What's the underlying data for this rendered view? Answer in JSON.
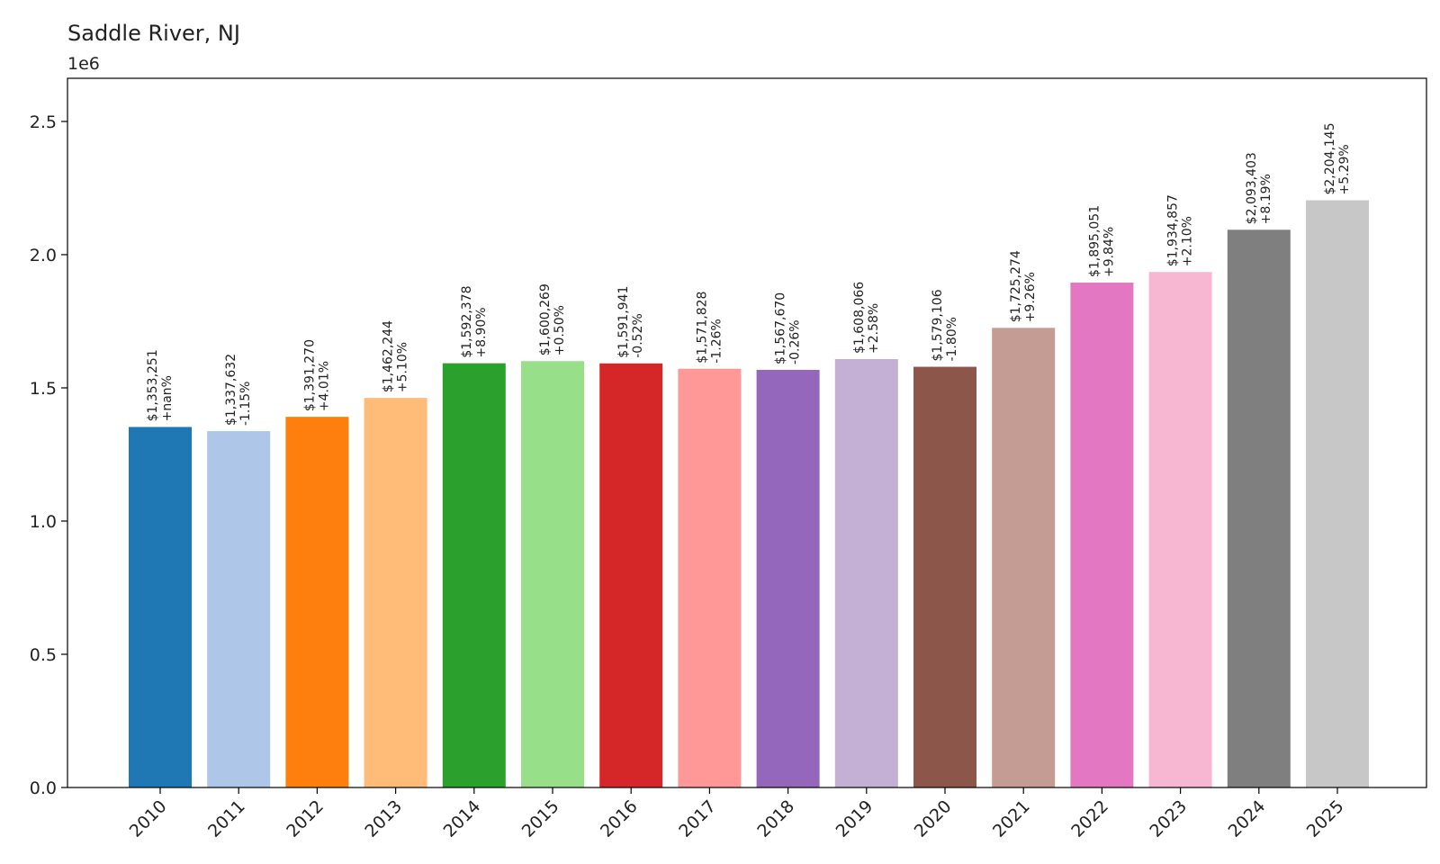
{
  "chart_data": {
    "type": "bar",
    "title": "Saddle River, NJ",
    "y_offset_label": "1e6",
    "xlabel": "",
    "ylabel": "",
    "ylim": [
      0,
      2500000
    ],
    "ytick_values": [
      0,
      500000,
      1000000,
      1500000,
      2000000,
      2500000
    ],
    "ytick_labels": [
      "0.0",
      "0.5",
      "1.0",
      "1.5",
      "2.0",
      "2.5"
    ],
    "grid": false,
    "legend": "none",
    "categories": [
      "2010",
      "2011",
      "2012",
      "2013",
      "2014",
      "2015",
      "2016",
      "2017",
      "2018",
      "2019",
      "2020",
      "2021",
      "2022",
      "2023",
      "2024",
      "2025"
    ],
    "values": [
      1353251,
      1337632,
      1391270,
      1462244,
      1592378,
      1600269,
      1591941,
      1571828,
      1567670,
      1608066,
      1579106,
      1725274,
      1895051,
      1934857,
      2093403,
      2204145
    ],
    "value_labels": [
      "$1,353,251",
      "$1,337,632",
      "$1,391,270",
      "$1,462,244",
      "$1,592,378",
      "$1,600,269",
      "$1,591,941",
      "$1,571,828",
      "$1,567,670",
      "$1,608,066",
      "$1,579,106",
      "$1,725,274",
      "$1,895,051",
      "$1,934,857",
      "$2,093,403",
      "$2,204,145"
    ],
    "change_labels": [
      "+nan%",
      "-1.15%",
      "+4.01%",
      "+5.10%",
      "+8.90%",
      "+0.50%",
      "-0.52%",
      "-1.26%",
      "-0.26%",
      "+2.58%",
      "-1.80%",
      "+9.26%",
      "+9.84%",
      "+2.10%",
      "+8.19%",
      "+5.29%"
    ],
    "colors": [
      "#1f77b4",
      "#aec7e8",
      "#ff7f0e",
      "#ffbb78",
      "#2ca02c",
      "#98df8a",
      "#d62728",
      "#ff9896",
      "#9467bd",
      "#c5b0d5",
      "#8c564b",
      "#c49c94",
      "#e377c2",
      "#f7b6d2",
      "#7f7f7f",
      "#c7c7c7"
    ]
  }
}
